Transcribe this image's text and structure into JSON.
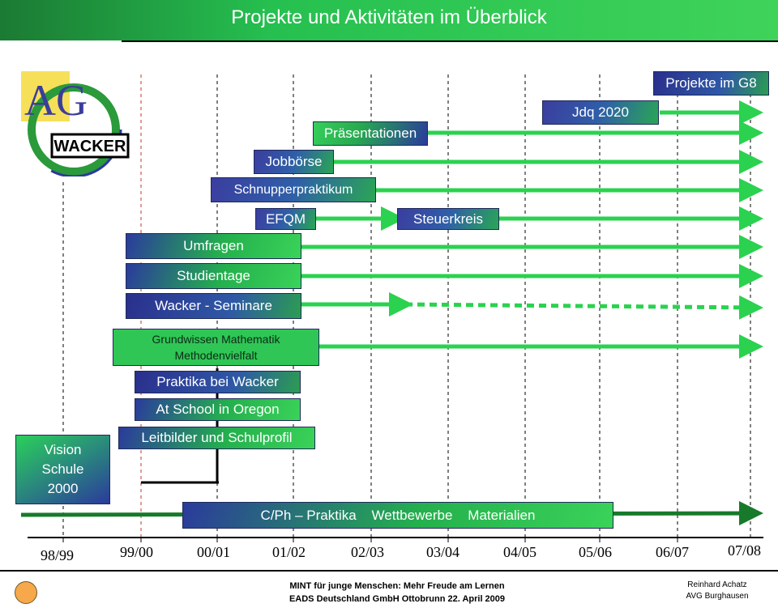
{
  "header": {
    "title": "Projekte und Aktivitäten im Überblick"
  },
  "logo": {
    "letters": "AG",
    "company": "WACKER"
  },
  "timeline": {
    "years": [
      "98/99",
      "99/00",
      "00/01",
      "01/02",
      "02/03",
      "03/04",
      "04/05",
      "05/06",
      "06/07",
      "07/08"
    ]
  },
  "activities": {
    "projekte_g8": "Projekte im G8",
    "jdq": "Jdq 2020",
    "praesentationen": "Präsentationen",
    "jobboerse": "Jobbörse",
    "schnupper": "Schnupperpraktikum",
    "efqm": "EFQM",
    "steuerkreis": "Steuerkreis",
    "umfragen": "Umfragen",
    "studientage": "Studientage",
    "wacker_seminare": "Wacker - Seminare",
    "grundwissen_1": "Grundwissen Mathematik",
    "grundwissen_2": "Methodenvielfalt",
    "praktika": "Praktika bei Wacker",
    "oregon": "At School in Oregon",
    "leitbilder": "Leitbilder und Schulprofil",
    "vision_1": "Vision",
    "vision_2": "Schule",
    "vision_3": "2000",
    "cph": "C/Ph – Praktika    Wettbewerbe    Materialien"
  },
  "footer": {
    "line1": "MINT für junge Menschen:   Mehr Freude am Lernen",
    "line2": "EADS Deutschland GmbH  Ottobrunn   22. April 2009",
    "author": "Reinhard Achatz",
    "school": "AVG Burghausen"
  }
}
